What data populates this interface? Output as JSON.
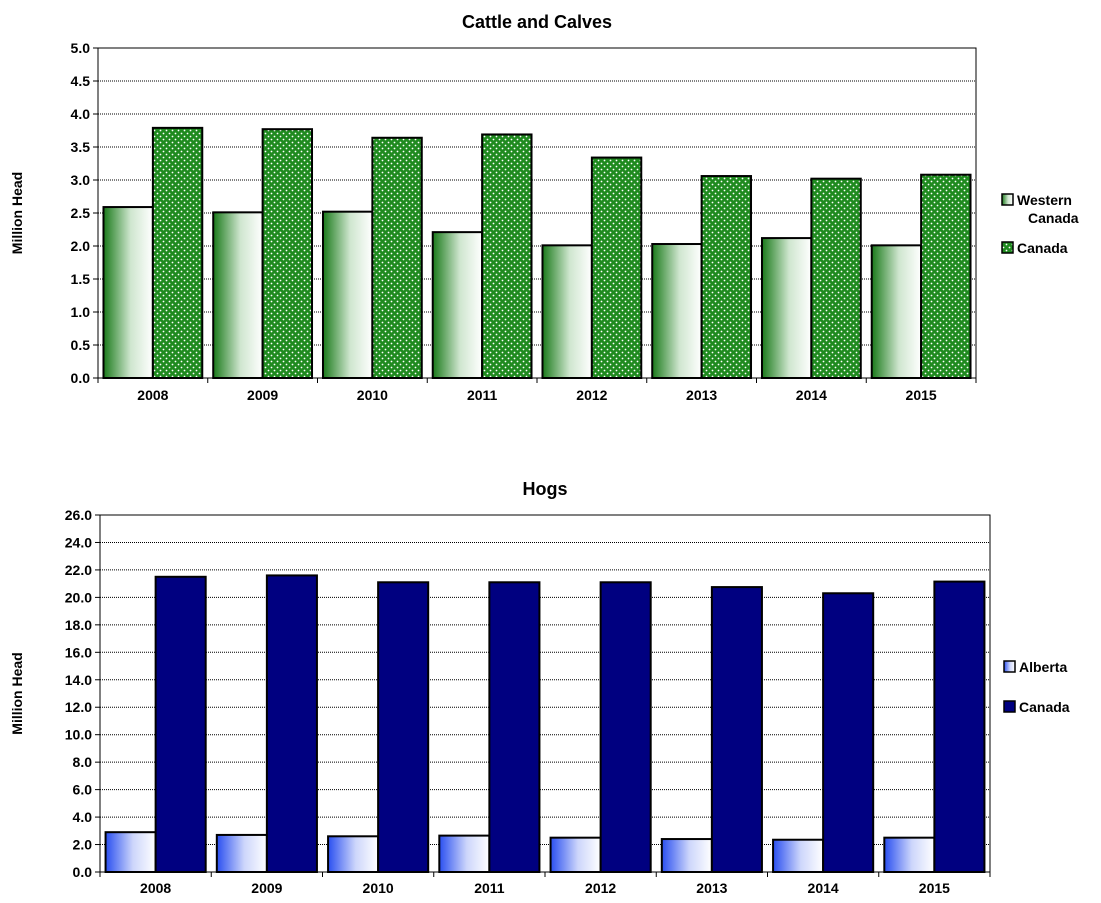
{
  "chart_data": [
    {
      "type": "bar",
      "title": "Cattle and Calves",
      "ylabel": "Million Head",
      "xlabel": "",
      "categories": [
        "2008",
        "2009",
        "2010",
        "2011",
        "2012",
        "2013",
        "2014",
        "2015"
      ],
      "ylim": [
        0,
        5
      ],
      "ytick_step": 0.5,
      "ytick_decimals": 1,
      "grid": true,
      "legend_position": "right",
      "series": [
        {
          "name": "Western Canada",
          "values": [
            2.59,
            2.51,
            2.52,
            2.21,
            2.01,
            2.03,
            2.12,
            2.01
          ],
          "color": "#1a7a1a",
          "style": "gradient"
        },
        {
          "name": "Canada",
          "values": [
            3.79,
            3.77,
            3.64,
            3.69,
            3.34,
            3.06,
            3.02,
            3.08
          ],
          "color": "#1f8a1f",
          "style": "dots"
        }
      ],
      "legend_lines": [
        [
          "Western",
          "Canada"
        ],
        [
          "Canada"
        ]
      ]
    },
    {
      "type": "bar",
      "title": "Hogs",
      "ylabel": "Million Head",
      "xlabel": "",
      "categories": [
        "2008",
        "2009",
        "2010",
        "2011",
        "2012",
        "2013",
        "2014",
        "2015"
      ],
      "ylim": [
        0,
        26
      ],
      "ytick_step": 2,
      "ytick_decimals": 1,
      "grid": true,
      "legend_position": "right",
      "series": [
        {
          "name": "Alberta",
          "values": [
            2.9,
            2.7,
            2.6,
            2.65,
            2.5,
            2.4,
            2.35,
            2.5
          ],
          "color": "#3355ee",
          "style": "gradient-blue"
        },
        {
          "name": "Canada",
          "values": [
            21.5,
            21.6,
            21.1,
            21.1,
            21.1,
            20.75,
            20.3,
            21.15
          ],
          "color": "#000080",
          "style": "solid"
        }
      ],
      "legend_lines": [
        [
          "Alberta"
        ],
        [
          "Canada"
        ]
      ]
    }
  ]
}
